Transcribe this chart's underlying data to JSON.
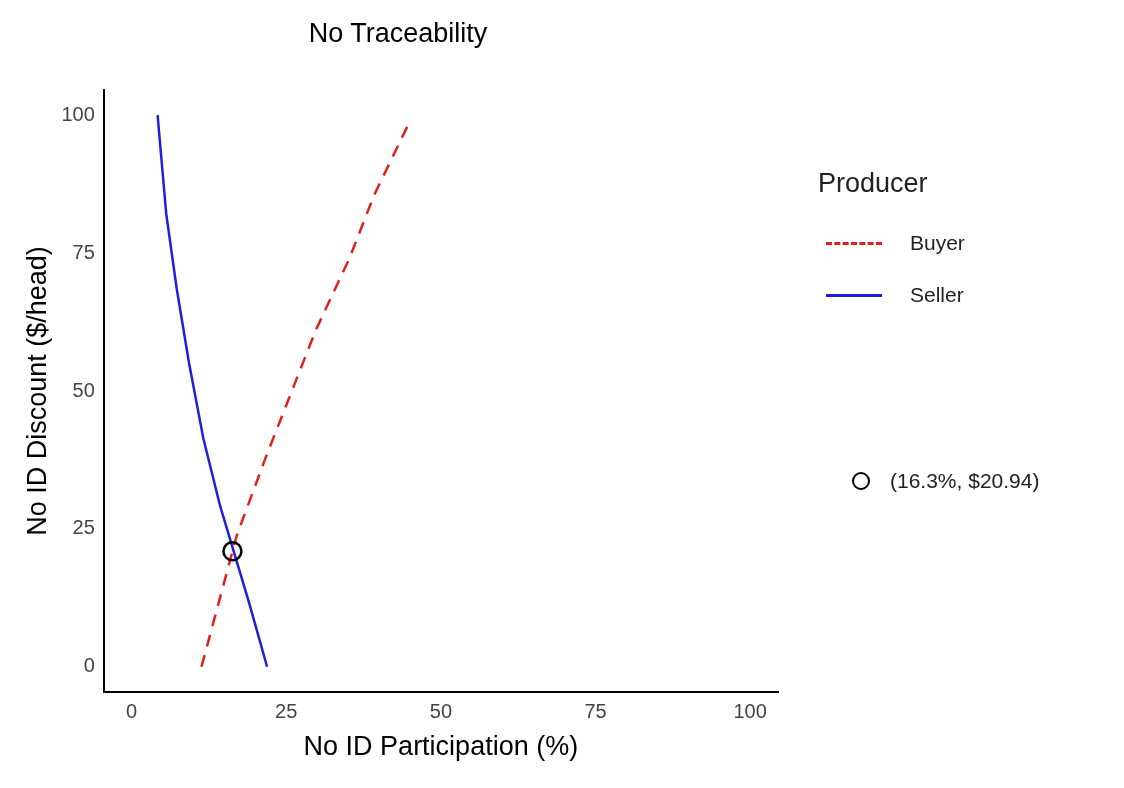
{
  "chart_data": {
    "type": "line",
    "title": "No Traceability",
    "xlabel": "No ID Participation (%)",
    "ylabel": "No ID Discount ($/head)",
    "legend_title": "Producer",
    "legend": "right",
    "grid": false,
    "xlim": [
      -4.5,
      104.5
    ],
    "ylim": [
      -4.5,
      104.5
    ],
    "xticks": [
      0,
      25,
      50,
      75,
      100
    ],
    "yticks": [
      0,
      25,
      50,
      75,
      100
    ],
    "series": [
      {
        "name": "Buyer",
        "color": "#e0201b",
        "line_style": "dashed",
        "marker": "none",
        "x": [
          11.3,
          17.0,
          21.7,
          29.8,
          35.2,
          39.2,
          44.6
        ],
        "values": [
          0,
          23.8,
          38.0,
          61.1,
          74.0,
          85.5,
          98.0
        ]
      },
      {
        "name": "Seller",
        "color": "#1d1ee0",
        "line_style": "solid",
        "marker": "none",
        "x": [
          4.2,
          5.6,
          7.3,
          9.3,
          11.6,
          14.3,
          19.0,
          21.9
        ],
        "values": [
          100,
          82.1,
          68.5,
          55.0,
          41.4,
          29.2,
          11.6,
          0
        ]
      },
      {
        "name": "(16.3%, $20.94)",
        "type": "scatter",
        "color": "#000000",
        "marker": "circle",
        "x": [
          16.3
        ],
        "values": [
          20.94
        ]
      }
    ]
  }
}
